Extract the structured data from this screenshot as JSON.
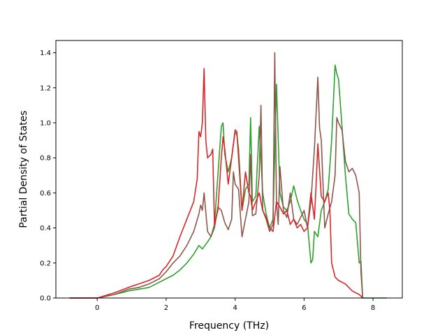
{
  "chart_data": {
    "type": "line",
    "title": "",
    "xlabel": "Frequency (THz)",
    "ylabel": "Partial Density of States",
    "xlim": [
      -1.2,
      8.85
    ],
    "ylim": [
      0,
      1.47
    ],
    "xticks": [
      0,
      2,
      4,
      6,
      8
    ],
    "yticks": [
      0.0,
      0.2,
      0.4,
      0.6,
      0.8,
      1.0,
      1.2,
      1.4
    ],
    "xtick_labels": [
      "0",
      "2",
      "4",
      "6",
      "8"
    ],
    "ytick_labels": [
      "0.0",
      "0.2",
      "0.4",
      "0.6",
      "0.8",
      "1.0",
      "1.2",
      "1.4"
    ],
    "grid": false,
    "legend": "none",
    "series": [
      {
        "color": "#2ca02c",
        "x": [
          -0.8,
          0.0,
          0.5,
          0.9,
          1.2,
          1.5,
          1.8,
          2.0,
          2.2,
          2.4,
          2.6,
          2.8,
          2.95,
          3.05,
          3.2,
          3.3,
          3.4,
          3.5,
          3.6,
          3.65,
          3.7,
          3.8,
          3.9,
          4.0,
          4.05,
          4.1,
          4.2,
          4.3,
          4.4,
          4.45,
          4.5,
          4.6,
          4.7,
          4.8,
          4.9,
          5.0,
          5.1,
          5.2,
          5.3,
          5.4,
          5.5,
          5.6,
          5.7,
          5.8,
          5.9,
          6.0,
          6.1,
          6.2,
          6.25,
          6.3,
          6.4,
          6.5,
          6.6,
          6.7,
          6.8,
          6.9,
          6.95,
          7.0,
          7.1,
          7.2,
          7.3,
          7.4,
          7.5,
          7.6,
          7.65,
          7.7,
          8.4
        ],
        "values": [
          0.0,
          0.0,
          0.02,
          0.04,
          0.05,
          0.06,
          0.09,
          0.11,
          0.13,
          0.16,
          0.2,
          0.25,
          0.3,
          0.28,
          0.32,
          0.35,
          0.42,
          0.7,
          0.98,
          1.0,
          0.82,
          0.72,
          0.8,
          0.95,
          0.93,
          0.85,
          0.5,
          0.62,
          0.65,
          1.03,
          0.55,
          0.58,
          0.98,
          0.6,
          0.48,
          0.4,
          0.45,
          1.22,
          0.6,
          0.52,
          0.5,
          0.55,
          0.64,
          0.56,
          0.5,
          0.45,
          0.42,
          0.2,
          0.22,
          0.38,
          0.35,
          0.5,
          0.55,
          0.62,
          0.9,
          1.33,
          1.28,
          1.25,
          0.98,
          0.7,
          0.48,
          0.45,
          0.43,
          0.2,
          0.21,
          0.0,
          0.0
        ]
      },
      {
        "color": "#8c564b",
        "x": [
          -0.8,
          0.0,
          0.5,
          0.9,
          1.2,
          1.5,
          1.8,
          2.0,
          2.2,
          2.4,
          2.6,
          2.8,
          2.95,
          3.0,
          3.05,
          3.1,
          3.2,
          3.3,
          3.4,
          3.5,
          3.6,
          3.7,
          3.8,
          3.9,
          3.95,
          4.0,
          4.1,
          4.2,
          4.3,
          4.4,
          4.45,
          4.5,
          4.6,
          4.7,
          4.75,
          4.8,
          4.9,
          5.0,
          5.1,
          5.15,
          5.2,
          5.25,
          5.3,
          5.4,
          5.5,
          5.6,
          5.7,
          5.8,
          5.9,
          6.0,
          6.1,
          6.2,
          6.3,
          6.4,
          6.45,
          6.5,
          6.6,
          6.7,
          6.8,
          6.9,
          6.95,
          7.0,
          7.1,
          7.2,
          7.3,
          7.4,
          7.5,
          7.6,
          7.65,
          7.7
        ],
        "values": [
          0.0,
          0.0,
          0.02,
          0.05,
          0.06,
          0.08,
          0.11,
          0.15,
          0.2,
          0.24,
          0.3,
          0.38,
          0.48,
          0.53,
          0.5,
          0.6,
          0.38,
          0.35,
          0.4,
          0.52,
          0.5,
          0.43,
          0.39,
          0.45,
          0.72,
          0.65,
          0.62,
          0.35,
          0.45,
          0.55,
          0.82,
          0.47,
          0.48,
          0.7,
          1.1,
          0.5,
          0.45,
          0.38,
          0.42,
          1.4,
          0.55,
          0.42,
          0.75,
          0.5,
          0.46,
          0.6,
          0.45,
          0.42,
          0.46,
          0.5,
          0.4,
          0.55,
          0.85,
          1.26,
          0.97,
          0.9,
          0.4,
          0.48,
          0.55,
          0.7,
          1.03,
          1.0,
          0.96,
          0.78,
          0.72,
          0.74,
          0.7,
          0.6,
          0.15,
          0.0
        ]
      },
      {
        "color": "#d62728",
        "x": [
          -0.8,
          0.0,
          0.5,
          0.9,
          1.2,
          1.5,
          1.8,
          1.9,
          2.0,
          2.2,
          2.4,
          2.6,
          2.8,
          2.9,
          2.95,
          3.0,
          3.05,
          3.1,
          3.15,
          3.2,
          3.3,
          3.35,
          3.4,
          3.5,
          3.6,
          3.65,
          3.7,
          3.8,
          3.9,
          4.0,
          4.05,
          4.1,
          4.2,
          4.3,
          4.4,
          4.45,
          4.5,
          4.6,
          4.7,
          4.8,
          4.9,
          5.0,
          5.1,
          5.2,
          5.3,
          5.4,
          5.5,
          5.6,
          5.7,
          5.8,
          5.9,
          6.0,
          6.1,
          6.2,
          6.3,
          6.35,
          6.4,
          6.5,
          6.6,
          6.7,
          6.75,
          6.8,
          6.9,
          7.0,
          7.2,
          7.4,
          7.6,
          7.65,
          7.7
        ],
        "values": [
          0.0,
          0.0,
          0.03,
          0.06,
          0.08,
          0.1,
          0.13,
          0.16,
          0.18,
          0.24,
          0.35,
          0.45,
          0.55,
          0.68,
          0.95,
          0.92,
          1.0,
          1.31,
          0.9,
          0.8,
          0.82,
          0.85,
          0.42,
          0.5,
          0.8,
          0.92,
          0.85,
          0.65,
          0.8,
          0.96,
          0.95,
          0.8,
          0.5,
          0.72,
          0.6,
          0.58,
          0.5,
          0.55,
          0.6,
          0.5,
          0.46,
          0.4,
          0.38,
          0.55,
          0.52,
          0.48,
          0.5,
          0.42,
          0.45,
          0.4,
          0.42,
          0.38,
          0.4,
          0.6,
          0.45,
          0.65,
          0.88,
          0.58,
          0.55,
          0.6,
          0.5,
          0.2,
          0.12,
          0.1,
          0.08,
          0.04,
          0.02,
          0.01,
          0.0
        ]
      }
    ]
  }
}
